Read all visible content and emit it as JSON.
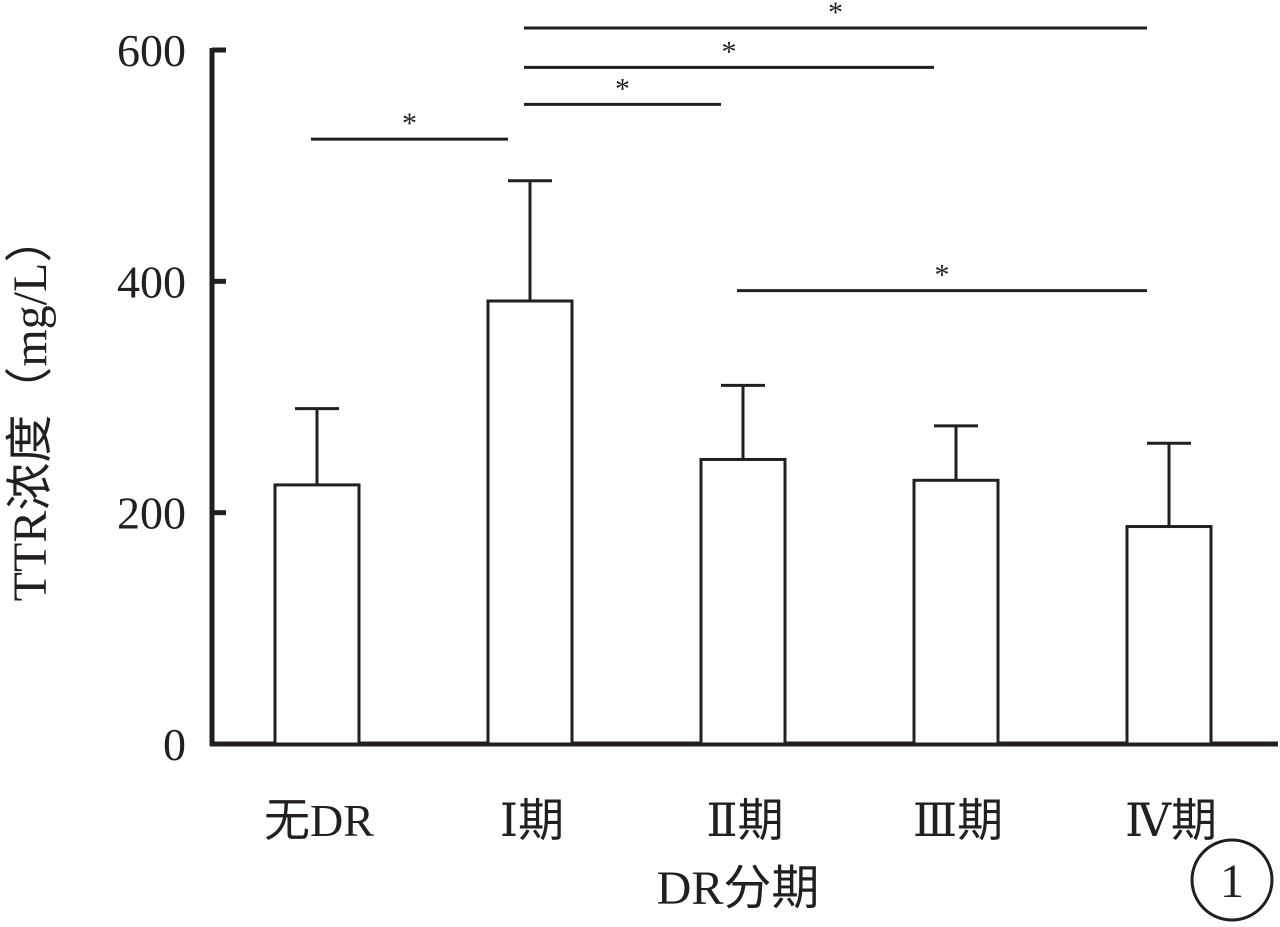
{
  "chart_data": {
    "type": "bar",
    "xlabel": "DR分期",
    "ylabel": "TTR浓度（mg/L）",
    "categories": [
      "无DR",
      "Ⅰ期",
      "Ⅱ期",
      "Ⅲ期",
      "Ⅳ期"
    ],
    "values": [
      224,
      383,
      246,
      228,
      188
    ],
    "errors": [
      66,
      104,
      64,
      47,
      72
    ],
    "ylim": [
      0,
      600
    ],
    "yticks": [
      0,
      200,
      400,
      600
    ],
    "grid": false,
    "bar_fill": "#ffffff",
    "stroke_color": "#231f20",
    "significance": [
      {
        "from": 0,
        "to": 1,
        "level": 523,
        "label": "*"
      },
      {
        "from": 1,
        "to": 2,
        "level": 553,
        "label": "*"
      },
      {
        "from": 1,
        "to": 3,
        "level": 585,
        "label": "*"
      },
      {
        "from": 1,
        "to": 4,
        "level": 619,
        "label": "*"
      },
      {
        "from": 2,
        "to": 4,
        "level": 392,
        "label": "*"
      }
    ],
    "panel_label": "1"
  }
}
